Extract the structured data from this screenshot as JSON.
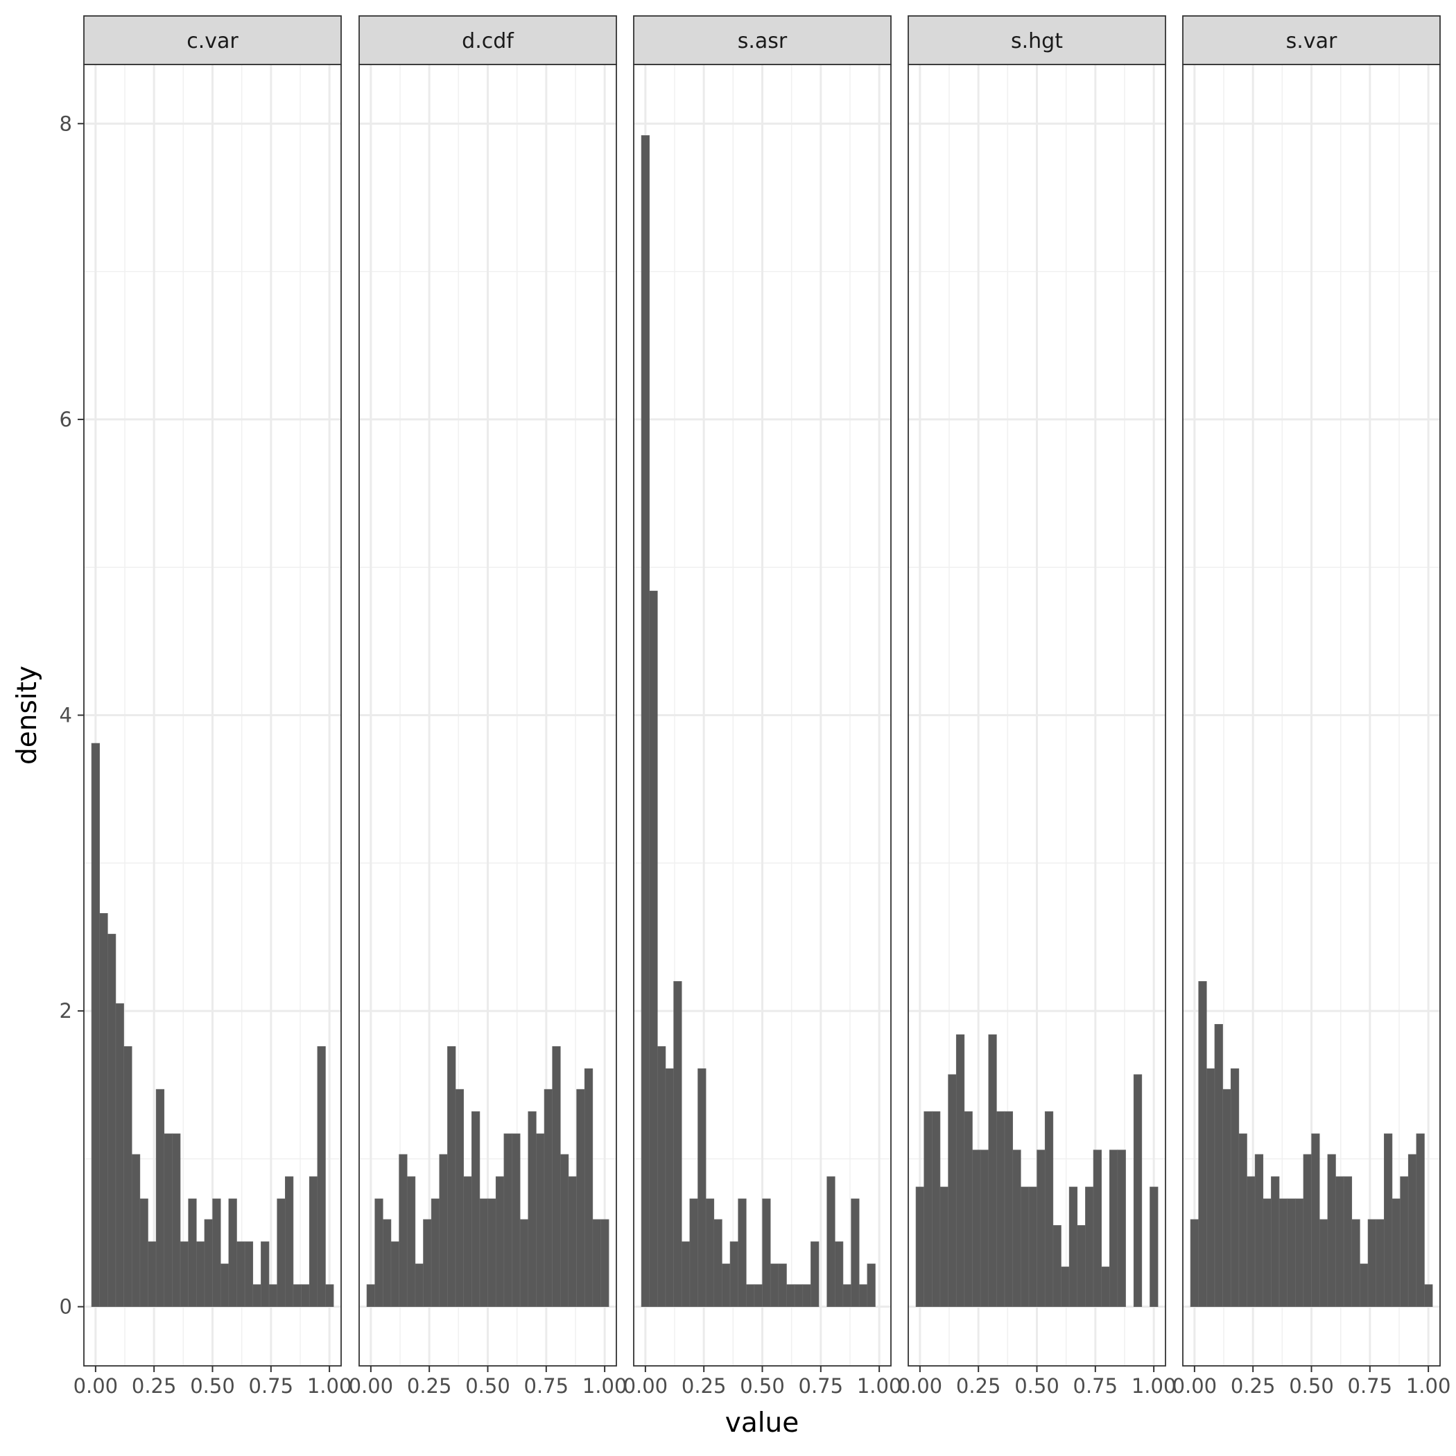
{
  "chart_data": {
    "type": "bar",
    "xlabel": "value",
    "ylabel": "density",
    "ylim": [
      -0.4,
      8.4
    ],
    "xlim": [
      -0.05,
      1.05
    ],
    "y_ticks": [
      "0",
      "2",
      "4",
      "6",
      "8"
    ],
    "x_ticks": [
      "0.00",
      "0.25",
      "0.50",
      "0.75",
      "1.00"
    ],
    "grid": true,
    "bin_width": 0.0345,
    "bar_color": "#595959",
    "panels": [
      {
        "name": "c.var",
        "values": [
          3.81,
          2.66,
          2.52,
          2.05,
          1.76,
          1.03,
          0.73,
          0.44,
          1.47,
          1.17,
          1.17,
          0.44,
          0.73,
          0.44,
          0.59,
          0.73,
          0.29,
          0.73,
          0.44,
          0.44,
          0.15,
          0.44,
          0.15,
          0.73,
          0.88,
          0.15,
          0.15,
          0.88,
          1.76,
          0.15
        ]
      },
      {
        "name": "d.cdf",
        "values": [
          0.15,
          0.73,
          0.59,
          0.44,
          1.03,
          0.88,
          0.29,
          0.59,
          0.73,
          1.03,
          1.76,
          1.47,
          0.88,
          1.32,
          0.73,
          0.73,
          0.88,
          1.17,
          1.17,
          0.59,
          1.32,
          1.17,
          1.47,
          1.76,
          1.03,
          0.88,
          1.47,
          1.61,
          0.59,
          0.59
        ]
      },
      {
        "name": "s.asr",
        "values": [
          7.92,
          4.84,
          1.76,
          1.61,
          2.2,
          0.44,
          0.73,
          1.61,
          0.73,
          0.59,
          0.29,
          0.44,
          0.73,
          0.15,
          0.15,
          0.73,
          0.29,
          0.29,
          0.15,
          0.15,
          0.15,
          0.44,
          0,
          0.88,
          0.44,
          0.15,
          0.73,
          0.15,
          0.29
        ]
      },
      {
        "name": "s.hgt",
        "values": [
          0.81,
          1.32,
          1.32,
          0.81,
          1.57,
          1.84,
          1.32,
          1.06,
          1.06,
          1.84,
          1.32,
          1.32,
          1.06,
          0.81,
          0.81,
          1.06,
          1.32,
          0.55,
          0.27,
          0.81,
          0.55,
          0.81,
          1.06,
          0.27,
          1.06,
          1.06,
          0,
          1.57,
          0,
          0.81
        ]
      },
      {
        "name": "s.var",
        "values": [
          0.59,
          2.2,
          1.61,
          1.91,
          1.47,
          1.61,
          1.17,
          0.88,
          1.03,
          0.73,
          0.88,
          0.73,
          0.73,
          0.73,
          1.03,
          1.17,
          0.59,
          1.03,
          0.88,
          0.88,
          0.59,
          0.29,
          0.59,
          0.59,
          1.17,
          0.73,
          0.88,
          1.03,
          1.17,
          0.15
        ]
      }
    ]
  }
}
